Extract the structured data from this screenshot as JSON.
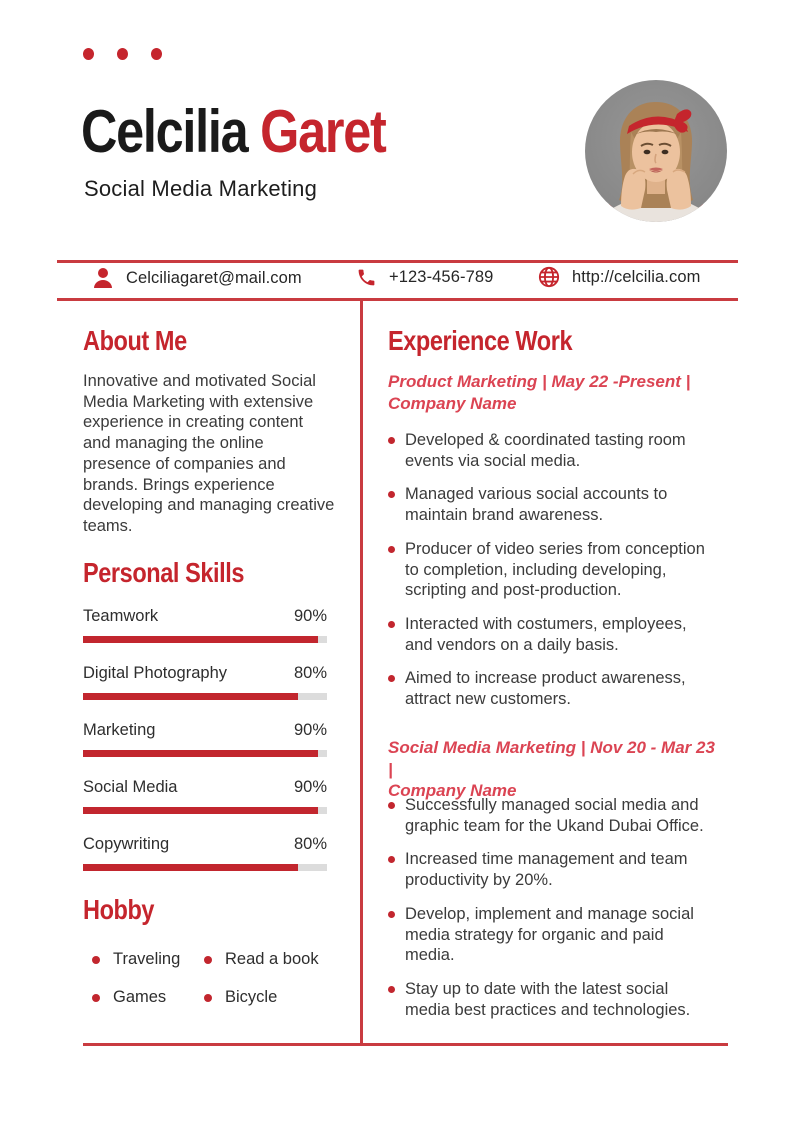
{
  "header": {
    "first_name": "Celcilia ",
    "last_name": "Garet",
    "subtitle": "Social Media Marketing"
  },
  "contact": {
    "email": {
      "icon": "person-icon",
      "text": "Celciliagaret@mail.com"
    },
    "phone": {
      "icon": "phone-icon",
      "text": "+123-456-789"
    },
    "website": {
      "icon": "globe-icon",
      "text": "http://celcilia.com"
    }
  },
  "about": {
    "title": "About Me",
    "body": "Innovative and motivated Social Media Marketing with extensive experience in creating content and managing the online presence of companies and brands. Brings experience developing and managing creative teams."
  },
  "skills": {
    "title": "Personal Skills",
    "items": [
      {
        "name": "Teamwork",
        "percent": "90%",
        "fill": 96.5
      },
      {
        "name": "Digital Photography",
        "percent": "80%",
        "fill": 88
      },
      {
        "name": "Marketing",
        "percent": "90%",
        "fill": 96.5
      },
      {
        "name": "Social Media",
        "percent": "90%",
        "fill": 96.5
      },
      {
        "name": "Copywriting",
        "percent": "80%",
        "fill": 88
      }
    ]
  },
  "hobby": {
    "title": "Hobby",
    "items": [
      "Traveling",
      "Read a book",
      "Games",
      "Bicycle"
    ]
  },
  "experience": {
    "title": "Experience Work",
    "jobs": [
      {
        "heading_line1": "Product Marketing | May 22 -Present |",
        "heading_line2": "Company Name",
        "bullets": [
          "Developed & coordinated tasting room events via social media.",
          "Managed various social accounts to maintain brand awareness.",
          "Producer of video series from conception to completion, including developing, scripting and post-production.",
          "Interacted with costumers, employees, and vendors on a daily basis.",
          "Aimed to increase product awareness, attract new customers."
        ]
      },
      {
        "heading_line1": "Social Media Marketing | Nov 20 - Mar 23 |",
        "heading_line2": "Company Name",
        "bullets": [
          "Successfully managed social media and graphic team for the Ukand Dubai Office.",
          "Increased time management and team productivity by 20%.",
          "Develop, implement and manage social media strategy for organic and paid media.",
          "Stay up to date with the latest social media best practices and technologies."
        ]
      }
    ]
  },
  "colors": {
    "accent": "#C5252D",
    "accent_line": "#C93B40",
    "subhead": "#DB4453",
    "body_text": "#3b3b3b",
    "track_gray": "#dcdcdc"
  }
}
